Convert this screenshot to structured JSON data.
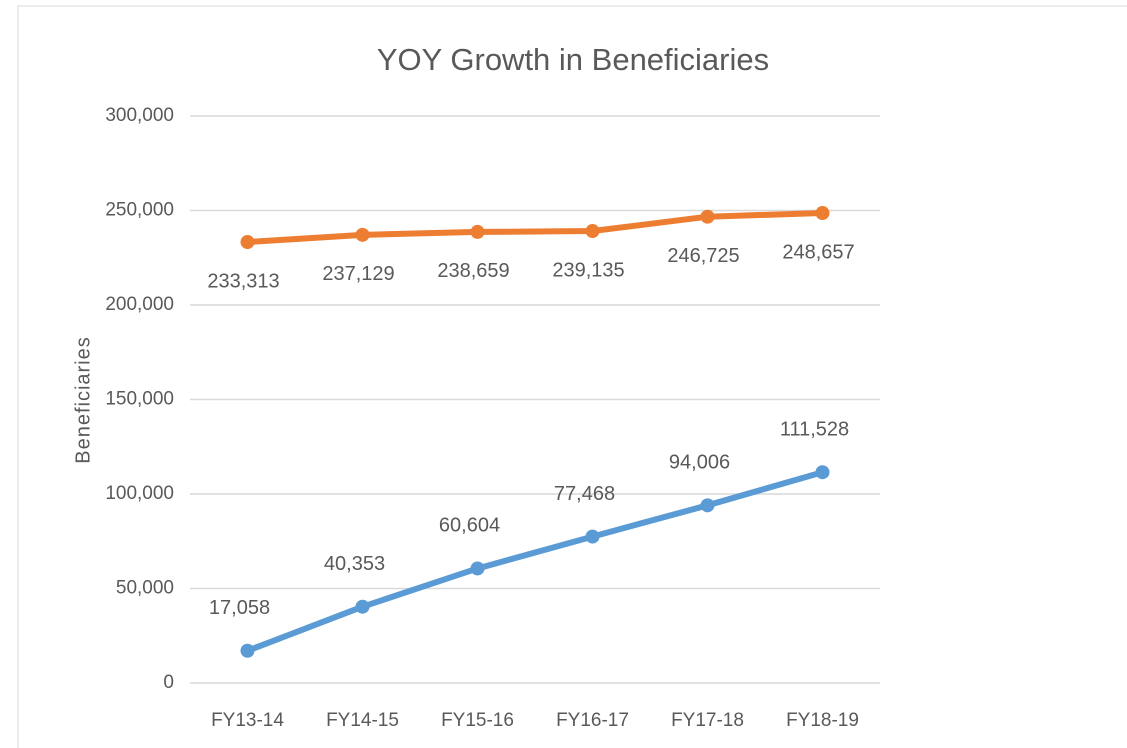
{
  "chart_data": {
    "type": "line",
    "title": "YOY Growth in Beneficiaries",
    "y_label": "Beneficiaries",
    "categories": [
      "FY13-14",
      "FY14-15",
      "FY15-16",
      "FY16-17",
      "FY17-18",
      "FY18-19"
    ],
    "series": [
      {
        "color": "#ed7d31",
        "values": [
          233313,
          237129,
          238659,
          239135,
          246725,
          248657
        ],
        "value_labels": [
          "233,313",
          "237,129",
          "238,659",
          "239,135",
          "246,725",
          "248,657"
        ]
      },
      {
        "color": "#5b9bd5",
        "values": [
          17058,
          40353,
          60604,
          77468,
          94006,
          111528
        ],
        "value_labels": [
          "17,058",
          "40,353",
          "60,604",
          "77,468",
          "94,006",
          "111,528"
        ]
      }
    ],
    "ylim": [
      0,
      300000
    ],
    "yticks": [
      0,
      {
        "value": 50000,
        "label": "50,000"
      },
      {
        "value": 100000,
        "label": "100,000"
      },
      {
        "value": 150000,
        "label": "150,000"
      },
      {
        "value": 200000,
        "label": "200,000"
      },
      {
        "value": 250000,
        "label": "250,000"
      },
      {
        "value": 300000,
        "label": "300,000"
      }
    ],
    "grid": true
  }
}
